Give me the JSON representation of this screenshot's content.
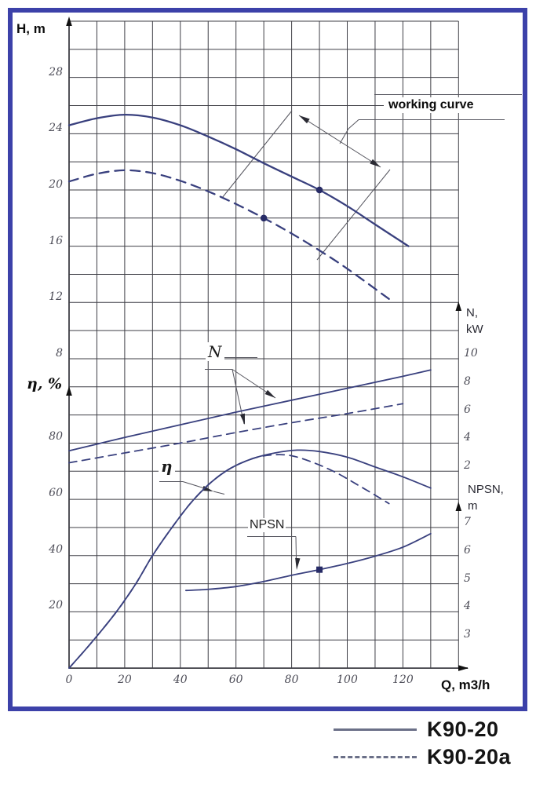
{
  "labels": {
    "h_axis": "H, m",
    "eta_axis": "η, %",
    "n_axis_line1": "N,",
    "n_axis_line2": "kW",
    "npsh_axis_line1": "NPSN,",
    "npsh_axis_line2": "m",
    "q_axis": "Q, m3/h",
    "working_curve": "working curve",
    "n_annotation": "N",
    "eta_annotation": "η",
    "npsh_annotation": "NPSN"
  },
  "legend": [
    {
      "style": "solid",
      "label": "K90-20"
    },
    {
      "style": "dashed",
      "label": "K90-20a"
    }
  ],
  "colors": {
    "curve": "#39407e",
    "marker": "#272b66",
    "grid": "#3f3f46",
    "frame": "#3c41a9",
    "annotation": "#55555e"
  },
  "chart_data": {
    "type": "line",
    "title": "Pump performance curves K90-20 / K90-20a",
    "x_axis": {
      "label": "Q, m3/h",
      "ticks": [
        0,
        20,
        40,
        60,
        80,
        100,
        120
      ],
      "range": [
        0,
        140
      ],
      "grid": true
    },
    "axes": {
      "H": {
        "label": "H, m",
        "ticks": [
          28,
          24,
          20,
          16,
          12,
          8
        ]
      },
      "eta": {
        "label": "η, %",
        "ticks": [
          80,
          60,
          40,
          20
        ]
      },
      "N": {
        "label": "N, kW",
        "ticks": [
          10,
          8,
          6,
          4,
          2
        ]
      },
      "NPSN": {
        "label": "NPSN, m",
        "ticks": [
          7,
          6,
          5,
          4,
          3
        ]
      }
    },
    "series": [
      {
        "name": "K90-20 head H(Q)",
        "axis": "H",
        "style": "solid",
        "points": [
          [
            0,
            24.6
          ],
          [
            10,
            25.1
          ],
          [
            20,
            25.35
          ],
          [
            30,
            25.15
          ],
          [
            40,
            24.6
          ],
          [
            50,
            23.8
          ],
          [
            60,
            22.9
          ],
          [
            70,
            21.9
          ],
          [
            80,
            20.95
          ],
          [
            90,
            20.0
          ],
          [
            100,
            18.85
          ],
          [
            110,
            17.55
          ],
          [
            122,
            16.0
          ]
        ]
      },
      {
        "name": "K90-20a head H(Q)",
        "axis": "H",
        "style": "dashed",
        "points": [
          [
            0,
            20.6
          ],
          [
            10,
            21.15
          ],
          [
            20,
            21.4
          ],
          [
            30,
            21.2
          ],
          [
            40,
            20.65
          ],
          [
            50,
            19.9
          ],
          [
            60,
            19.0
          ],
          [
            70,
            18.0
          ],
          [
            80,
            16.9
          ],
          [
            90,
            15.7
          ],
          [
            100,
            14.4
          ],
          [
            115,
            12.25
          ]
        ]
      },
      {
        "name": "K90-20 power N(Q)",
        "axis": "N",
        "style": "solid",
        "points": [
          [
            0,
            3.45
          ],
          [
            20,
            4.4
          ],
          [
            40,
            5.3
          ],
          [
            60,
            6.2
          ],
          [
            80,
            7.05
          ],
          [
            100,
            7.9
          ],
          [
            120,
            8.75
          ],
          [
            130,
            9.2
          ]
        ]
      },
      {
        "name": "K90-20a power N(Q)",
        "axis": "N",
        "style": "dashed",
        "points": [
          [
            0,
            2.6
          ],
          [
            20,
            3.3
          ],
          [
            40,
            4.0
          ],
          [
            60,
            4.75
          ],
          [
            80,
            5.45
          ],
          [
            100,
            6.1
          ],
          [
            120,
            6.8
          ]
        ]
      },
      {
        "name": "K90-20 efficiency η(Q)",
        "axis": "eta",
        "style": "solid",
        "points": [
          [
            0,
            0
          ],
          [
            8,
            9
          ],
          [
            17,
            20
          ],
          [
            24,
            30
          ],
          [
            30,
            40
          ],
          [
            37,
            50
          ],
          [
            44,
            59
          ],
          [
            51,
            66
          ],
          [
            58,
            71
          ],
          [
            66,
            74.5
          ],
          [
            74,
            76.5
          ],
          [
            82,
            77.5
          ],
          [
            90,
            77
          ],
          [
            100,
            75
          ],
          [
            110,
            71.5
          ],
          [
            120,
            68
          ],
          [
            130,
            64
          ]
        ]
      },
      {
        "name": "K90-20a efficiency η(Q)",
        "axis": "eta",
        "style": "dashed",
        "points": [
          [
            0,
            0
          ],
          [
            8,
            9
          ],
          [
            17,
            20
          ],
          [
            24,
            30
          ],
          [
            30,
            40
          ],
          [
            37,
            50
          ],
          [
            44,
            59
          ],
          [
            51,
            66
          ],
          [
            58,
            71
          ],
          [
            66,
            74.5
          ],
          [
            73,
            75.8
          ],
          [
            80,
            75.5
          ],
          [
            88,
            73
          ],
          [
            96,
            69.5
          ],
          [
            104,
            65
          ],
          [
            110,
            61.5
          ],
          [
            115,
            58.5
          ]
        ]
      },
      {
        "name": "K90-20 NPSN(Q)",
        "axis": "NPSN",
        "style": "solid",
        "points": [
          [
            42,
            4.76
          ],
          [
            50,
            4.8
          ],
          [
            60,
            4.9
          ],
          [
            70,
            5.08
          ],
          [
            80,
            5.3
          ],
          [
            90,
            5.5
          ],
          [
            100,
            5.72
          ],
          [
            110,
            5.98
          ],
          [
            120,
            6.3
          ],
          [
            130,
            6.78
          ]
        ]
      }
    ],
    "markers": [
      {
        "axis": "H",
        "q": 90,
        "value": 20,
        "shape": "circle"
      },
      {
        "axis": "H",
        "q": 70,
        "value": 18,
        "shape": "circle"
      },
      {
        "axis": "NPSN",
        "q": 90,
        "value": 5.5,
        "shape": "square"
      }
    ]
  }
}
